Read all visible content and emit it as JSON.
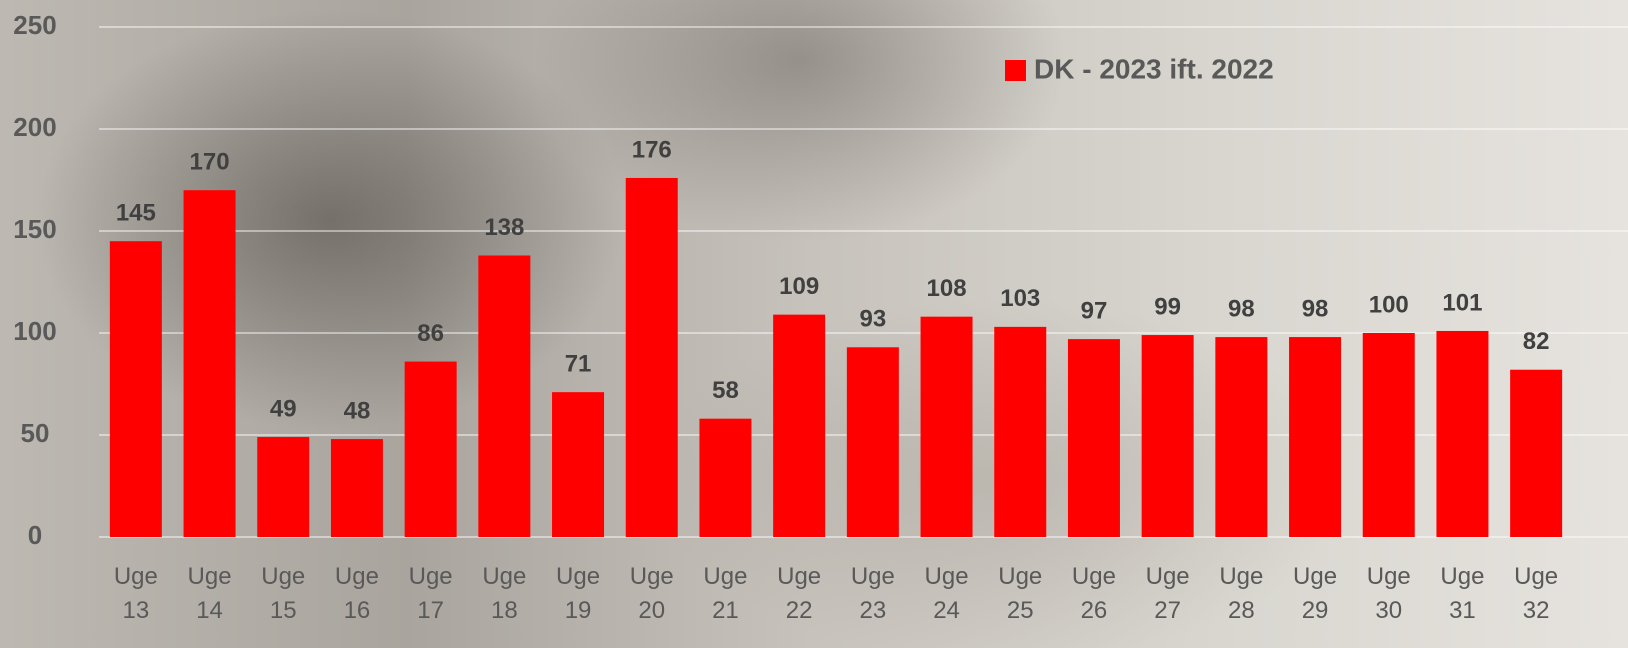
{
  "chart_data": {
    "type": "bar",
    "categories": [
      "Uge 13",
      "Uge 14",
      "Uge 15",
      "Uge 16",
      "Uge 17",
      "Uge 18",
      "Uge 19",
      "Uge 20",
      "Uge 21",
      "Uge 22",
      "Uge 23",
      "Uge 24",
      "Uge 25",
      "Uge 26",
      "Uge 27",
      "Uge 28",
      "Uge 29",
      "Uge 30",
      "Uge 31",
      "Uge 32"
    ],
    "series": [
      {
        "name": "DK - 2023 ift. 2022",
        "color": "#ff0000",
        "values": [
          145,
          170,
          49,
          48,
          86,
          138,
          71,
          176,
          58,
          109,
          93,
          108,
          103,
          97,
          99,
          98,
          98,
          100,
          101,
          82
        ]
      }
    ],
    "ylim": [
      0,
      250
    ],
    "yticks": [
      0,
      50,
      100,
      150,
      200,
      250
    ],
    "grid": true,
    "legend": "top-right"
  }
}
